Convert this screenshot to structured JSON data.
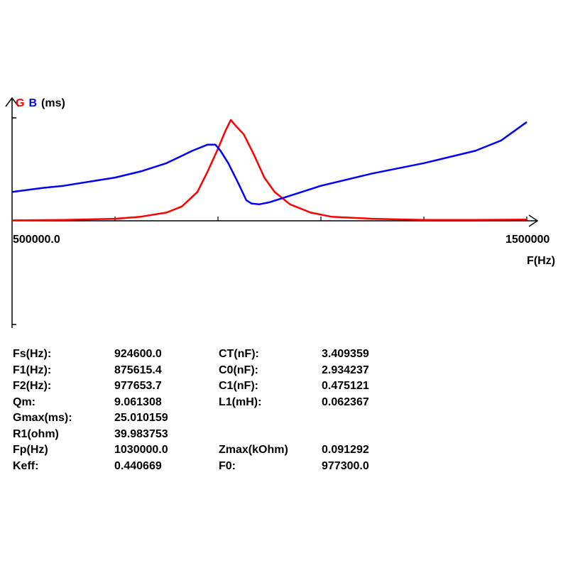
{
  "chart_data": {
    "type": "line",
    "y_axis_label": {
      "g": "G",
      "b": "B",
      "unit": "(ms)"
    },
    "xlabel": "F(Hz)",
    "x_tick_labels": {
      "min": "500000.0",
      "max": "1500000"
    },
    "xlim": [
      500000,
      1500000
    ],
    "y_range_note_units": "ms",
    "colors": {
      "G": "#ff0000",
      "B": "#0000ff"
    },
    "series": [
      {
        "name": "G",
        "x": [
          500000,
          600000,
          700000,
          750000,
          800000,
          830000,
          860000,
          880000,
          900000,
          915000,
          925000,
          935000,
          950000,
          970000,
          990000,
          1010000,
          1040000,
          1080000,
          1120000,
          1200000,
          1300000,
          1400000,
          1500000
        ],
        "y": [
          0.1,
          0.2,
          0.5,
          1.0,
          2.0,
          3.5,
          7.0,
          12.0,
          17.5,
          22.0,
          24.5,
          23.0,
          21.0,
          16.0,
          10.5,
          7.0,
          4.0,
          2.0,
          1.0,
          0.5,
          0.2,
          0.2,
          0.3
        ]
      },
      {
        "name": "B",
        "x": [
          500000,
          560000,
          600000,
          700000,
          750000,
          800000,
          850000,
          880000,
          895000,
          905000,
          920000,
          940000,
          955000,
          965000,
          980000,
          1000000,
          1050000,
          1100000,
          1200000,
          1300000,
          1400000,
          1450000,
          1500000
        ],
        "y": [
          7.0,
          8.0,
          8.5,
          10.5,
          12.0,
          14.0,
          17.0,
          18.5,
          18.5,
          17.0,
          14.0,
          9.0,
          5.0,
          4.2,
          4.0,
          4.5,
          6.5,
          8.5,
          11.5,
          14.0,
          17.0,
          19.5,
          24.0
        ]
      }
    ]
  },
  "params": [
    {
      "k1": "Fs(Hz):",
      "v1": "924600.0",
      "k2": "CT(nF):",
      "v2": "3.409359"
    },
    {
      "k1": "F1(Hz):",
      "v1": "875615.4",
      "k2": "C0(nF):",
      "v2": "2.934237"
    },
    {
      "k1": "F2(Hz):",
      "v1": "977653.7",
      "k2": "C1(nF):",
      "v2": "0.475121"
    },
    {
      "k1": "Qm:",
      "v1": "9.061308",
      "k2": "L1(mH):",
      "v2": "0.062367"
    },
    {
      "k1": "Gmax(ms):",
      "v1": "25.010159",
      "k2": "",
      "v2": ""
    },
    {
      "k1": "R1(ohm)",
      "v1": "39.983753",
      "k2": "",
      "v2": ""
    },
    {
      "k1": "Fp(Hz)",
      "v1": "1030000.0",
      "k2": "Zmax(kOhm)",
      "v2": "0.091292"
    },
    {
      "k1": "Keff:",
      "v1": "0.440669",
      "k2": "F0:",
      "v2": "977300.0"
    }
  ]
}
